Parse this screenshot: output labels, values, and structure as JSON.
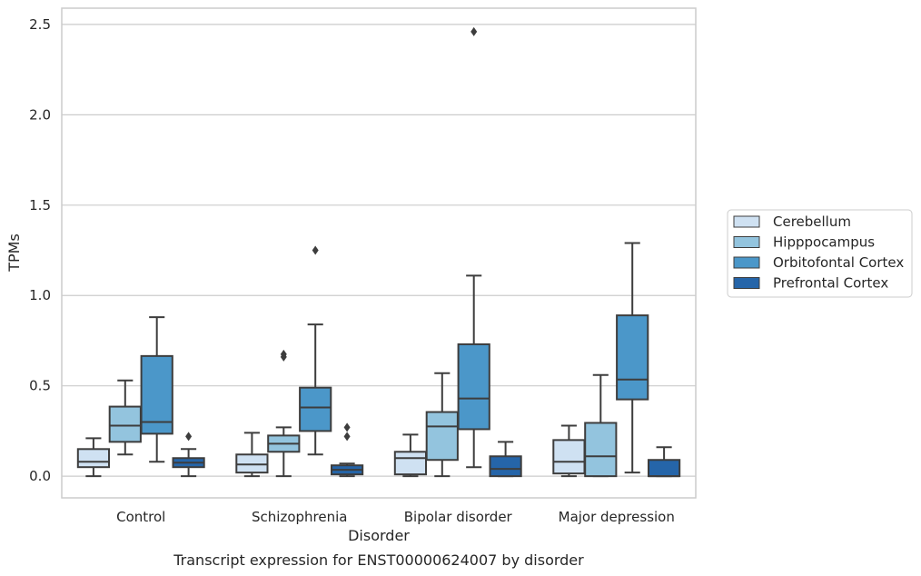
{
  "chart_data": {
    "type": "box",
    "title": "",
    "caption": "Transcript expression for ENST00000624007 by disorder",
    "xlabel": "Disorder",
    "ylabel": "TPMs",
    "ylim": [
      -0.12,
      2.59
    ],
    "yticks": [
      0.0,
      0.5,
      1.0,
      1.5,
      2.0,
      2.5
    ],
    "ytick_labels": [
      "0.0",
      "0.5",
      "1.0",
      "1.5",
      "2.0",
      "2.5"
    ],
    "grid": "horizontal",
    "legend_position": "right",
    "categories": [
      "Control",
      "Schizophrenia",
      "Bipolar disorder",
      "Major depression"
    ],
    "series": [
      {
        "name": "Cerebellum",
        "color": "#cfe1f2",
        "boxes": [
          {
            "whisker_low": 0.0,
            "q1": 0.05,
            "median": 0.08,
            "q3": 0.15,
            "whisker_high": 0.21,
            "outliers": []
          },
          {
            "whisker_low": 0.0,
            "q1": 0.02,
            "median": 0.065,
            "q3": 0.12,
            "whisker_high": 0.24,
            "outliers": []
          },
          {
            "whisker_low": 0.0,
            "q1": 0.01,
            "median": 0.1,
            "q3": 0.135,
            "whisker_high": 0.23,
            "outliers": []
          },
          {
            "whisker_low": 0.0,
            "q1": 0.015,
            "median": 0.08,
            "q3": 0.2,
            "whisker_high": 0.28,
            "outliers": []
          }
        ]
      },
      {
        "name": "Hipppocampus",
        "color": "#93c4de",
        "boxes": [
          {
            "whisker_low": 0.12,
            "q1": 0.19,
            "median": 0.28,
            "q3": 0.385,
            "whisker_high": 0.53,
            "outliers": []
          },
          {
            "whisker_low": 0.0,
            "q1": 0.135,
            "median": 0.18,
            "q3": 0.225,
            "whisker_high": 0.27,
            "outliers": [
              0.66,
              0.675
            ]
          },
          {
            "whisker_low": 0.0,
            "q1": 0.09,
            "median": 0.275,
            "q3": 0.355,
            "whisker_high": 0.57,
            "outliers": []
          },
          {
            "whisker_low": 0.0,
            "q1": 0.0,
            "median": 0.11,
            "q3": 0.295,
            "whisker_high": 0.56,
            "outliers": []
          }
        ]
      },
      {
        "name": "Orbitofontal Cortex",
        "color": "#4b97c9",
        "boxes": [
          {
            "whisker_low": 0.08,
            "q1": 0.235,
            "median": 0.3,
            "q3": 0.665,
            "whisker_high": 0.88,
            "outliers": []
          },
          {
            "whisker_low": 0.12,
            "q1": 0.25,
            "median": 0.38,
            "q3": 0.49,
            "whisker_high": 0.84,
            "outliers": [
              1.25
            ]
          },
          {
            "whisker_low": 0.05,
            "q1": 0.26,
            "median": 0.43,
            "q3": 0.73,
            "whisker_high": 1.11,
            "outliers": [
              2.46
            ]
          },
          {
            "whisker_low": 0.02,
            "q1": 0.425,
            "median": 0.535,
            "q3": 0.89,
            "whisker_high": 1.29,
            "outliers": []
          }
        ]
      },
      {
        "name": "Prefrontal Cortex",
        "color": "#2565a9",
        "boxes": [
          {
            "whisker_low": 0.0,
            "q1": 0.05,
            "median": 0.075,
            "q3": 0.1,
            "whisker_high": 0.15,
            "outliers": [
              0.22
            ]
          },
          {
            "whisker_low": 0.0,
            "q1": 0.01,
            "median": 0.035,
            "q3": 0.06,
            "whisker_high": 0.07,
            "outliers": [
              0.22,
              0.27
            ]
          },
          {
            "whisker_low": 0.0,
            "q1": 0.0,
            "median": 0.04,
            "q3": 0.11,
            "whisker_high": 0.19,
            "outliers": []
          },
          {
            "whisker_low": 0.0,
            "q1": 0.0,
            "median": 0.0,
            "q3": 0.09,
            "whisker_high": 0.16,
            "outliers": []
          }
        ]
      }
    ]
  }
}
